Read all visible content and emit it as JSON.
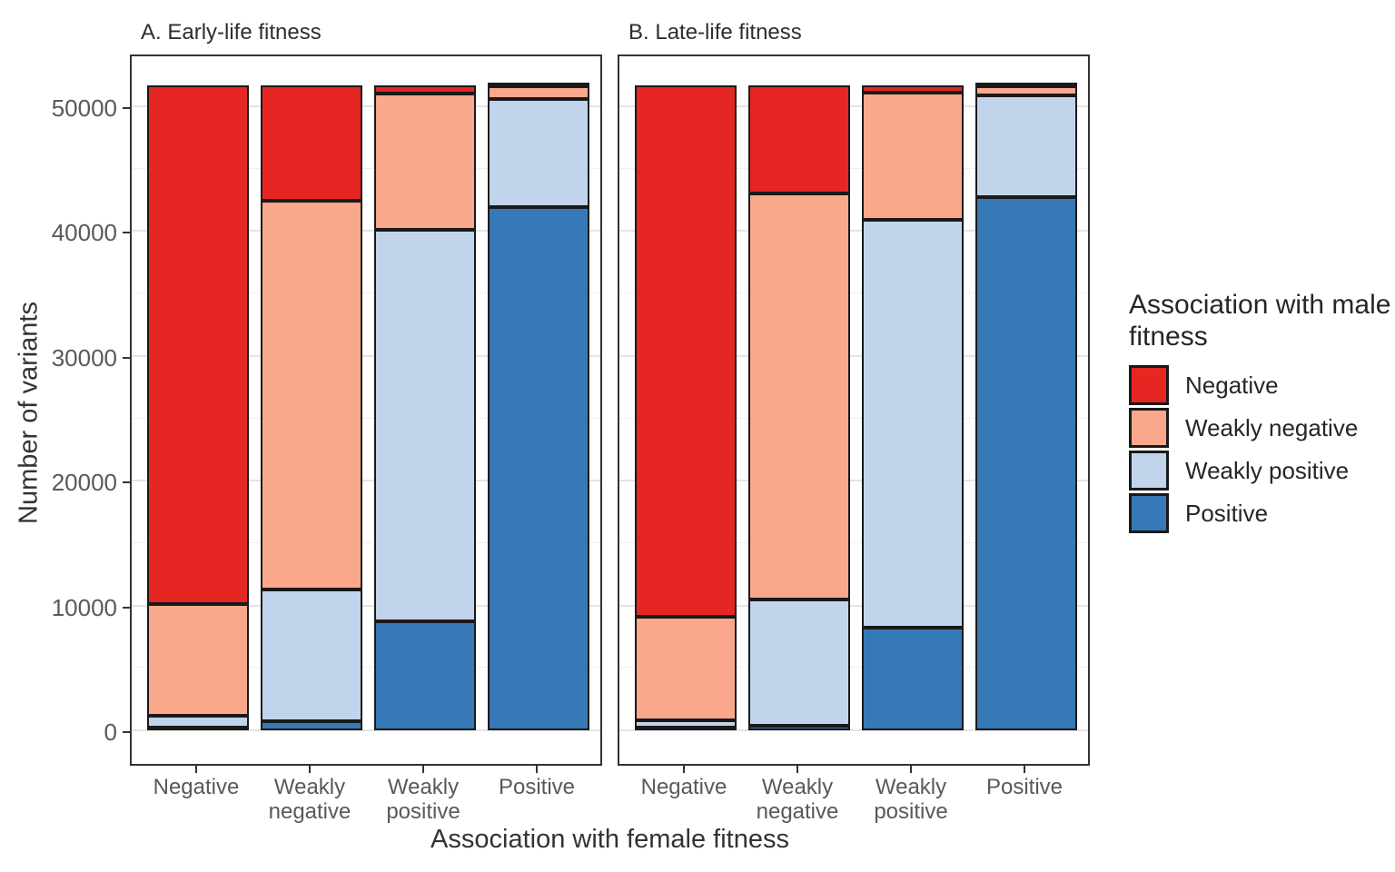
{
  "chart_data": {
    "type": "bar",
    "stacked": true,
    "orientation": "vertical",
    "xlabel": "Association with female fitness",
    "ylabel": "Number of variants",
    "categories": [
      "Negative",
      "Weakly negative",
      "Weakly positive",
      "Positive"
    ],
    "yticks": [
      0,
      10000,
      20000,
      30000,
      40000,
      50000
    ],
    "ytick_labels": [
      "0",
      "10000",
      "20000",
      "30000",
      "40000",
      "50000"
    ],
    "minor_yticks": [
      5000,
      15000,
      25000,
      35000,
      45000
    ],
    "ylim": [
      0,
      54500
    ],
    "grid": true,
    "bar_total_per_category": 51700,
    "stack_order_bottom_to_top": [
      "Positive",
      "Weakly positive",
      "Weakly negative",
      "Negative"
    ],
    "colors": {
      "Negative": "#e52622",
      "Weakly negative": "#f9a88c",
      "Weakly positive": "#c1d4ec",
      "Positive": "#3779b6"
    },
    "panels": [
      {
        "label": "A. Early-life fitness",
        "series": [
          {
            "name": "Negative",
            "values": [
              41600,
              9300,
              700,
              100
            ]
          },
          {
            "name": "Weakly negative",
            "values": [
              8900,
              31100,
              10900,
              1000
            ]
          },
          {
            "name": "Weakly positive",
            "values": [
              1000,
              10600,
              31400,
              8700
            ]
          },
          {
            "name": "Positive",
            "values": [
              200,
              700,
              8700,
              41900
            ]
          }
        ]
      },
      {
        "label": "B. Late-life fitness",
        "series": [
          {
            "name": "Negative",
            "values": [
              42600,
              8700,
              600,
              100
            ]
          },
          {
            "name": "Weakly negative",
            "values": [
              8300,
              32500,
              10200,
              700
            ]
          },
          {
            "name": "Weakly positive",
            "values": [
              600,
              10100,
              32700,
              8200
            ]
          },
          {
            "name": "Positive",
            "values": [
              200,
              400,
              8200,
              42700
            ]
          }
        ]
      }
    ],
    "legend": {
      "title": "Association with male fitness",
      "position": "right",
      "items": [
        "Negative",
        "Weakly negative",
        "Weakly positive",
        "Positive"
      ]
    }
  }
}
